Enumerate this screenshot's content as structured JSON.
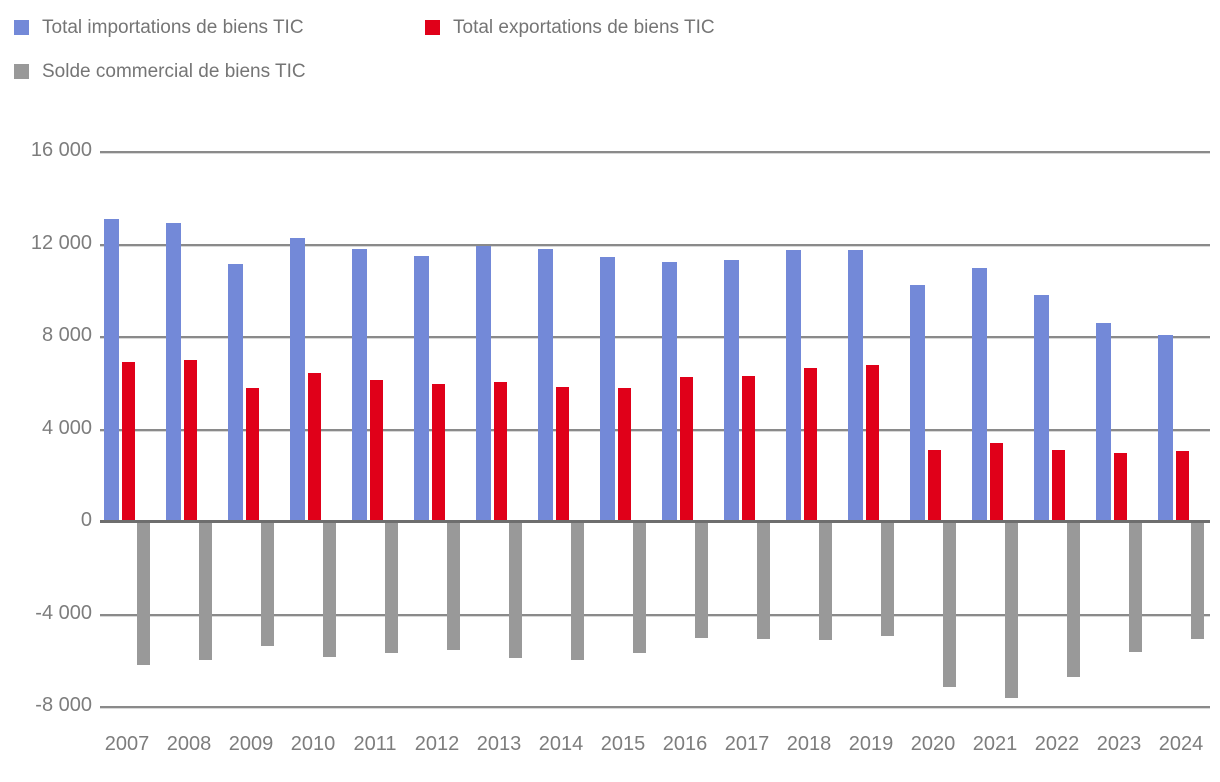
{
  "chart_data": {
    "type": "bar",
    "title": "",
    "categories": [
      "2007",
      "2008",
      "2009",
      "2010",
      "2011",
      "2012",
      "2013",
      "2014",
      "2015",
      "2016",
      "2017",
      "2018",
      "2019",
      "2020",
      "2021",
      "2022",
      "2023",
      "2024"
    ],
    "series": [
      {
        "name": "Total importations de biens TIC",
        "color": "#7389d8",
        "values": [
          13100,
          12950,
          11150,
          12300,
          11800,
          11500,
          11950,
          11800,
          11450,
          11250,
          11350,
          11750,
          11750,
          10250,
          11000,
          9800,
          8600,
          8100
        ]
      },
      {
        "name": "Total exportations de biens TIC",
        "color": "#e00019",
        "values": [
          6900,
          7000,
          5800,
          6450,
          6150,
          5950,
          6050,
          5850,
          5800,
          6250,
          6300,
          6650,
          6800,
          3100,
          3400,
          3100,
          3000,
          3050
        ]
      },
      {
        "name": "Solde commercial de biens TIC",
        "color": "#999999",
        "values": [
          -6200,
          -5950,
          -5350,
          -5850,
          -5650,
          -5550,
          -5900,
          -5950,
          -5650,
          -5000,
          -5050,
          -5100,
          -4950,
          -7150,
          -7600,
          -6700,
          -5600,
          -5050
        ]
      }
    ],
    "ylim": [
      -8000,
      16000
    ],
    "ytick_interval": 4000,
    "yticks": [
      {
        "value": 16000,
        "label": "16 000"
      },
      {
        "value": 12000,
        "label": "12 000"
      },
      {
        "value": 8000,
        "label": "8 000"
      },
      {
        "value": 4000,
        "label": "4 000"
      },
      {
        "value": 0,
        "label": "0"
      },
      {
        "value": -4000,
        "label": "-4 000"
      },
      {
        "value": -8000,
        "label": "-8 000"
      }
    ],
    "grid": true,
    "legend_position": "top-left"
  },
  "legend": {
    "items": [
      {
        "label": "Total importations de biens TIC",
        "color": "#7389d8"
      },
      {
        "label": "Total exportations de biens TIC",
        "color": "#e00019"
      },
      {
        "label": "Solde commercial de biens TIC",
        "color": "#999999"
      }
    ]
  }
}
